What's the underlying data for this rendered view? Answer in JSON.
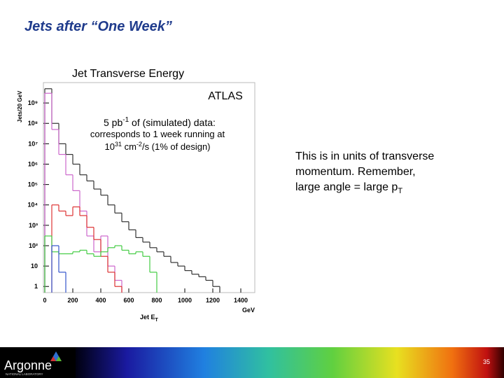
{
  "slide_title": "Jets after “One Week”",
  "chart_data": {
    "type": "step-histogram",
    "title": "Jet Transverse Energy",
    "y_label": "Jets/20 GeV",
    "x_label": [
      "Jet E",
      "T"
    ],
    "x_unit": "GeV",
    "annotations": {
      "experiment": "ATLAS",
      "luminosity": [
        "5 pb",
        "-1",
        " of (simulated) data:"
      ],
      "note1": "corresponds to 1 week running at",
      "note2": [
        "10",
        "31",
        " cm",
        "-2",
        "/s (1% of design)"
      ]
    },
    "log_y": true,
    "xlim": [
      0,
      1500
    ],
    "ylim": [
      0.5,
      10000000000
    ],
    "xticks": [
      0,
      200,
      400,
      600,
      800,
      1000,
      1200,
      1400
    ],
    "yticks": [
      1,
      10,
      {
        "value": 100,
        "label": "10²"
      },
      {
        "value": 1000,
        "label": "10³"
      },
      {
        "value": 10000,
        "label": "10⁴"
      },
      {
        "value": 100000,
        "label": "10⁵"
      },
      {
        "value": 1000000,
        "label": "10⁶"
      },
      {
        "value": 10000000,
        "label": "10⁷"
      },
      {
        "value": 100000000,
        "label": "10⁸"
      },
      {
        "value": 1000000000,
        "label": "10⁹"
      }
    ],
    "bins": [
      0,
      50,
      100,
      150,
      200,
      250,
      300,
      350,
      400,
      450,
      500,
      550,
      600,
      650,
      700,
      750,
      800,
      850,
      900,
      950,
      1000,
      1050,
      1100,
      1150,
      1200,
      1250
    ],
    "series": [
      {
        "color": "#333333",
        "values": [
          5000000000,
          100000000,
          10000000,
          3000000,
          1000000,
          300000,
          150000,
          60000,
          30000,
          10000,
          4000,
          1500,
          600,
          250,
          150,
          80,
          50,
          30,
          15,
          10,
          6,
          4,
          3,
          2,
          1
        ]
      },
      {
        "color": "#cc66cc",
        "values": [
          3000000000,
          50000000,
          3000000,
          300000,
          50000,
          5000,
          300,
          50,
          300,
          10,
          2,
          null,
          null,
          null,
          null,
          null,
          null,
          null,
          null,
          null,
          null,
          null,
          null,
          null,
          null
        ]
      },
      {
        "color": "#dd3333",
        "values": [
          null,
          10000,
          5000,
          3000,
          8000,
          3000,
          800,
          200,
          30,
          5,
          1,
          null,
          null,
          null,
          null,
          null,
          null,
          null,
          null,
          null,
          null,
          null,
          null,
          null,
          null
        ]
      },
      {
        "color": "#44cc44",
        "values": [
          300,
          50,
          40,
          40,
          50,
          60,
          40,
          30,
          50,
          80,
          100,
          60,
          40,
          50,
          30,
          5,
          null,
          null,
          null,
          null,
          null,
          null,
          null,
          null,
          null
        ]
      },
      {
        "color": "#3355cc",
        "values": [
          null,
          100,
          5,
          null,
          null,
          null,
          null,
          null,
          null,
          null,
          null,
          null,
          null,
          null,
          null,
          null,
          null,
          null,
          null,
          null,
          null,
          null,
          null,
          null,
          null
        ]
      }
    ]
  },
  "side_text": {
    "lines": [
      "This is in units of transverse",
      "momentum.  Remember,"
    ],
    "last": [
      "large angle = large p",
      "T"
    ]
  },
  "footer": {
    "logo": "Argonne",
    "logo_sub": "NATIONAL LABORATORY",
    "page": "35"
  }
}
